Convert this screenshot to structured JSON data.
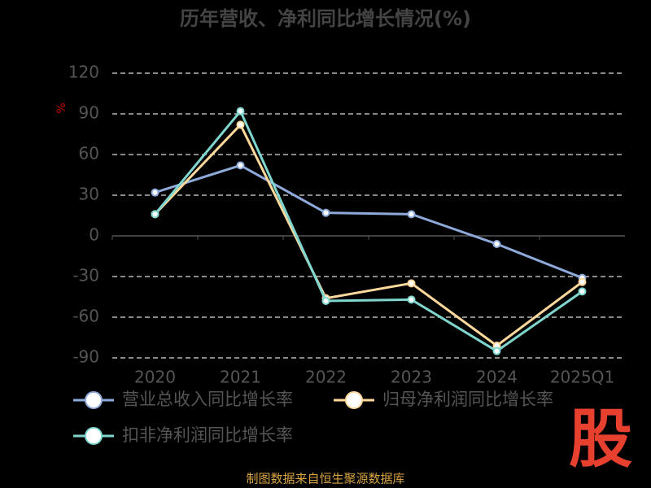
{
  "chart_data": {
    "type": "line",
    "title": "历年营收、净利同比增长情况(%)",
    "y_label": "%",
    "categories": [
      "2020",
      "2021",
      "2022",
      "2023",
      "2024",
      "2025Q1"
    ],
    "series": [
      {
        "name": "营业总收入同比增长率",
        "color": "#8eaadb",
        "values": [
          32,
          52,
          17,
          16,
          -6,
          -31
        ]
      },
      {
        "name": "归母净利润同比增长率",
        "color": "#ffd89b",
        "values": [
          16,
          82,
          -46,
          -35,
          -81,
          -34
        ]
      },
      {
        "name": "扣非净利润同比增长率",
        "color": "#7fd6cf",
        "values": [
          16,
          92,
          -48,
          -47,
          -85,
          -41
        ]
      }
    ],
    "ylim": [
      -90,
      120
    ],
    "yticks": [
      -90,
      -60,
      -30,
      0,
      30,
      60,
      90,
      120
    ],
    "grid": true,
    "source": "制图数据来自恒生聚源数据库",
    "watermark": "股"
  }
}
